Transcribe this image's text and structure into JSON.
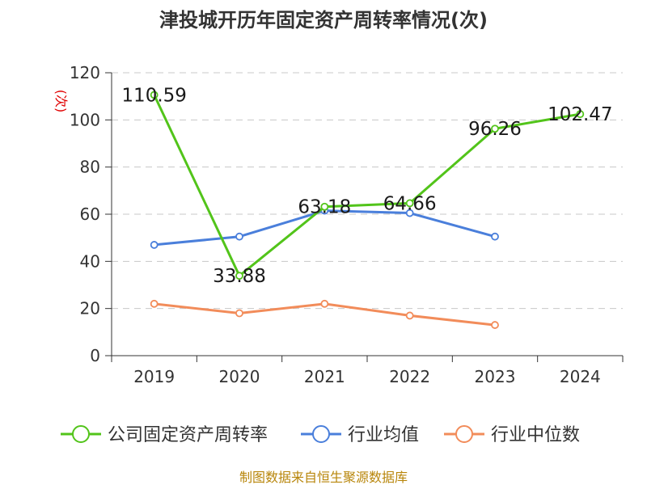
{
  "chart_data": {
    "type": "line",
    "title": "津投城开历年固定资产周转率情况(次)",
    "ylabel": "(次)",
    "x": [
      "2019",
      "2020",
      "2021",
      "2022",
      "2023",
      "2024"
    ],
    "ylim": [
      0,
      120
    ],
    "yticks": [
      0,
      20,
      40,
      60,
      80,
      100,
      120
    ],
    "grid": "horizontal dashed",
    "legend_position": "bottom",
    "series": [
      {
        "name": "公司固定资产周转率",
        "color": "#52c41a",
        "values": [
          110.59,
          33.88,
          63.18,
          64.66,
          96.26,
          102.47
        ],
        "labels": [
          "110.59",
          "33.88",
          "63.18",
          "64.66",
          "96.26",
          "102.47"
        ]
      },
      {
        "name": "行业均值",
        "color": "#4a7fdb",
        "values": [
          47,
          50.5,
          61.5,
          60.5,
          50.5,
          null
        ]
      },
      {
        "name": "行业中位数",
        "color": "#f28c5a",
        "values": [
          22,
          18,
          22,
          17,
          13,
          null
        ]
      }
    ]
  },
  "source": "制图数据来自恒生聚源数据库"
}
